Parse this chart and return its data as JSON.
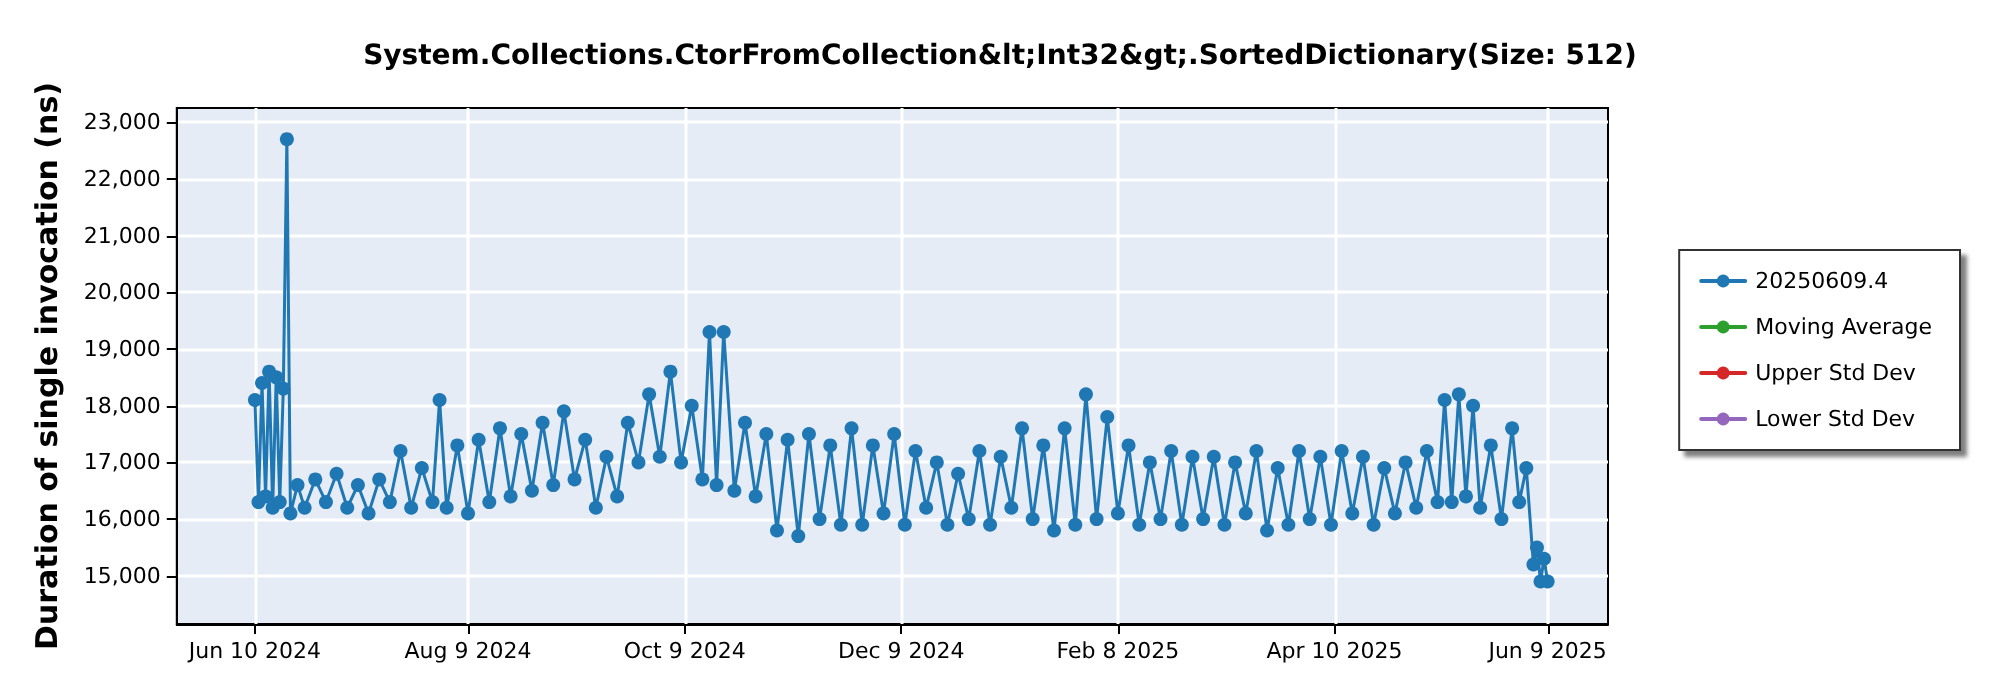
{
  "chart_data": {
    "type": "line",
    "title": "System.Collections.CtorFromCollection&lt;Int32&gt;.SortedDictionary(Size: 512)",
    "ylabel": "Duration of single invocation (ns)",
    "x": [
      "2024-06-10",
      "2024-06-11",
      "2024-06-12",
      "2024-06-13",
      "2024-06-14",
      "2024-06-15",
      "2024-06-16",
      "2024-06-17",
      "2024-06-18",
      "2024-06-19",
      "2024-06-20",
      "2024-06-22",
      "2024-06-24",
      "2024-06-27",
      "2024-06-30",
      "2024-07-03",
      "2024-07-06",
      "2024-07-09",
      "2024-07-12",
      "2024-07-15",
      "2024-07-18",
      "2024-07-21",
      "2024-07-24",
      "2024-07-27",
      "2024-07-30",
      "2024-08-01",
      "2024-08-03",
      "2024-08-06",
      "2024-08-09",
      "2024-08-12",
      "2024-08-15",
      "2024-08-18",
      "2024-08-21",
      "2024-08-24",
      "2024-08-27",
      "2024-08-30",
      "2024-09-02",
      "2024-09-05",
      "2024-09-08",
      "2024-09-11",
      "2024-09-14",
      "2024-09-17",
      "2024-09-20",
      "2024-09-23",
      "2024-09-26",
      "2024-09-29",
      "2024-10-02",
      "2024-10-05",
      "2024-10-08",
      "2024-10-11",
      "2024-10-14",
      "2024-10-16",
      "2024-10-18",
      "2024-10-20",
      "2024-10-23",
      "2024-10-26",
      "2024-10-29",
      "2024-11-01",
      "2024-11-04",
      "2024-11-07",
      "2024-11-10",
      "2024-11-13",
      "2024-11-16",
      "2024-11-19",
      "2024-11-22",
      "2024-11-25",
      "2024-11-28",
      "2024-12-01",
      "2024-12-04",
      "2024-12-07",
      "2024-12-10",
      "2024-12-13",
      "2024-12-16",
      "2024-12-19",
      "2024-12-22",
      "2024-12-25",
      "2024-12-28",
      "2024-12-31",
      "2025-01-03",
      "2025-01-06",
      "2025-01-09",
      "2025-01-12",
      "2025-01-15",
      "2025-01-18",
      "2025-01-21",
      "2025-01-24",
      "2025-01-27",
      "2025-01-30",
      "2025-02-02",
      "2025-02-05",
      "2025-02-08",
      "2025-02-11",
      "2025-02-14",
      "2025-02-17",
      "2025-02-20",
      "2025-02-23",
      "2025-02-26",
      "2025-03-01",
      "2025-03-04",
      "2025-03-07",
      "2025-03-10",
      "2025-03-13",
      "2025-03-16",
      "2025-03-19",
      "2025-03-22",
      "2025-03-25",
      "2025-03-28",
      "2025-03-31",
      "2025-04-03",
      "2025-04-06",
      "2025-04-09",
      "2025-04-12",
      "2025-04-15",
      "2025-04-18",
      "2025-04-21",
      "2025-04-24",
      "2025-04-27",
      "2025-04-30",
      "2025-05-03",
      "2025-05-06",
      "2025-05-09",
      "2025-05-11",
      "2025-05-13",
      "2025-05-15",
      "2025-05-17",
      "2025-05-19",
      "2025-05-21",
      "2025-05-24",
      "2025-05-27",
      "2025-05-30",
      "2025-06-01",
      "2025-06-03",
      "2025-06-05",
      "2025-06-06",
      "2025-06-07",
      "2025-06-08",
      "2025-06-09"
    ],
    "series": [
      {
        "name": "20250609.4",
        "color": "#1f77b4",
        "values": [
          18100,
          16300,
          18400,
          16400,
          18600,
          16200,
          18500,
          16300,
          18300,
          22700,
          16100,
          16600,
          16200,
          16700,
          16300,
          16800,
          16200,
          16600,
          16100,
          16700,
          16300,
          17200,
          16200,
          16900,
          16300,
          18100,
          16200,
          17300,
          16100,
          17400,
          16300,
          17600,
          16400,
          17500,
          16500,
          17700,
          16600,
          17900,
          16700,
          17400,
          16200,
          17100,
          16400,
          17700,
          17000,
          18200,
          17100,
          18600,
          17000,
          18000,
          16700,
          19300,
          16600,
          19300,
          16500,
          17700,
          16400,
          17500,
          15800,
          17400,
          15700,
          17500,
          16000,
          17300,
          15900,
          17600,
          15900,
          17300,
          16100,
          17500,
          15900,
          17200,
          16200,
          17000,
          15900,
          16800,
          16000,
          17200,
          15900,
          17100,
          16200,
          17600,
          16000,
          17300,
          15800,
          17600,
          15900,
          18200,
          16000,
          17800,
          16100,
          17300,
          15900,
          17000,
          16000,
          17200,
          15900,
          17100,
          16000,
          17100,
          15900,
          17000,
          16100,
          17200,
          15800,
          16900,
          15900,
          17200,
          16000,
          17100,
          15900,
          17200,
          16100,
          17100,
          15900,
          16900,
          16100,
          17000,
          16200,
          17200,
          16300,
          18100,
          16300,
          18200,
          16400,
          18000,
          16200,
          17300,
          16000,
          17600,
          16300,
          16900,
          15200,
          15500,
          14900,
          15300,
          14900
        ]
      },
      {
        "name": "Moving Average",
        "color": "#2ca02c",
        "values": [
          null,
          null,
          null,
          null,
          null,
          null,
          null,
          null,
          null,
          null,
          null,
          null,
          null,
          null,
          null,
          null,
          null,
          null,
          null,
          null,
          null,
          null,
          null,
          null,
          null,
          null,
          null,
          null,
          null,
          null,
          null,
          null,
          null,
          null,
          null,
          null,
          null,
          null,
          null,
          null,
          null,
          null,
          null,
          null,
          null,
          null,
          null,
          null,
          null,
          null,
          null,
          null,
          null,
          null,
          null,
          null,
          null,
          null,
          null,
          null,
          null,
          null,
          null,
          null,
          null,
          null,
          null,
          null,
          null,
          null,
          null,
          null,
          null,
          null,
          null,
          null,
          null,
          null,
          null,
          null,
          null,
          null,
          null,
          null,
          null,
          null,
          null,
          null,
          null,
          null,
          null,
          null,
          null,
          null,
          null,
          null,
          null,
          null,
          null,
          null,
          null,
          null,
          null,
          null,
          null,
          null,
          null,
          null,
          null,
          null,
          null,
          null,
          null,
          null,
          null,
          null,
          null,
          null,
          null,
          null,
          null,
          null,
          null,
          null,
          null,
          null,
          null,
          null,
          null,
          null,
          null,
          null,
          null,
          null,
          null,
          null,
          null
        ]
      },
      {
        "name": "Upper Std Dev",
        "color": "#d62728",
        "values": [
          null,
          null,
          null,
          null,
          null,
          null,
          null,
          null,
          null,
          null,
          null,
          null,
          null,
          null,
          null,
          null,
          null,
          null,
          null,
          null,
          null,
          null,
          null,
          null,
          null,
          null,
          null,
          null,
          null,
          null,
          null,
          null,
          null,
          null,
          null,
          null,
          null,
          null,
          null,
          null,
          null,
          null,
          null,
          null,
          null,
          null,
          null,
          null,
          null,
          null,
          null,
          null,
          null,
          null,
          null,
          null,
          null,
          null,
          null,
          null,
          null,
          null,
          null,
          null,
          null,
          null,
          null,
          null,
          null,
          null,
          null,
          null,
          null,
          null,
          null,
          null,
          null,
          null,
          null,
          null,
          null,
          null,
          null,
          null,
          null,
          null,
          null,
          null,
          null,
          null,
          null,
          null,
          null,
          null,
          null,
          null,
          null,
          null,
          null,
          null,
          null,
          null,
          null,
          null,
          null,
          null,
          null,
          null,
          null,
          null,
          null,
          null,
          null,
          null,
          null,
          null,
          null,
          null,
          null,
          null,
          null,
          null,
          null,
          null,
          null,
          null,
          null,
          null,
          null,
          null,
          null,
          null,
          null,
          null,
          null,
          null,
          null
        ]
      },
      {
        "name": "Lower Std Dev",
        "color": "#9467bd",
        "values": [
          null,
          null,
          null,
          null,
          null,
          null,
          null,
          null,
          null,
          null,
          null,
          null,
          null,
          null,
          null,
          null,
          null,
          null,
          null,
          null,
          null,
          null,
          null,
          null,
          null,
          null,
          null,
          null,
          null,
          null,
          null,
          null,
          null,
          null,
          null,
          null,
          null,
          null,
          null,
          null,
          null,
          null,
          null,
          null,
          null,
          null,
          null,
          null,
          null,
          null,
          null,
          null,
          null,
          null,
          null,
          null,
          null,
          null,
          null,
          null,
          null,
          null,
          null,
          null,
          null,
          null,
          null,
          null,
          null,
          null,
          null,
          null,
          null,
          null,
          null,
          null,
          null,
          null,
          null,
          null,
          null,
          null,
          null,
          null,
          null,
          null,
          null,
          null,
          null,
          null,
          null,
          null,
          null,
          null,
          null,
          null,
          null,
          null,
          null,
          null,
          null,
          null,
          null,
          null,
          null,
          null,
          null,
          null,
          null,
          null,
          null,
          null,
          null,
          null,
          null,
          null,
          null,
          null,
          null,
          null,
          null,
          null,
          null,
          null,
          null,
          null,
          null,
          null,
          null,
          null,
          null,
          null,
          null,
          null,
          null,
          null,
          null
        ]
      }
    ],
    "xlim": [
      "2024-05-19",
      "2025-06-26"
    ],
    "xticks": [
      {
        "value": "2024-06-10",
        "label": "Jun 10 2024"
      },
      {
        "value": "2024-08-09",
        "label": "Aug 9 2024"
      },
      {
        "value": "2024-10-09",
        "label": "Oct 9 2024"
      },
      {
        "value": "2024-12-09",
        "label": "Dec 9 2024"
      },
      {
        "value": "2025-02-08",
        "label": "Feb 8 2025"
      },
      {
        "value": "2025-04-10",
        "label": "Apr 10 2025"
      },
      {
        "value": "2025-06-09",
        "label": "Jun 9 2025"
      }
    ],
    "ylim": [
      14150,
      23250
    ],
    "yticks": [
      {
        "value": 15000,
        "label": "15,000"
      },
      {
        "value": 16000,
        "label": "16,000"
      },
      {
        "value": 17000,
        "label": "17,000"
      },
      {
        "value": 18000,
        "label": "18,000"
      },
      {
        "value": 19000,
        "label": "19,000"
      },
      {
        "value": 20000,
        "label": "20,000"
      },
      {
        "value": 21000,
        "label": "21,000"
      },
      {
        "value": 22000,
        "label": "22,000"
      },
      {
        "value": 23000,
        "label": "23,000"
      }
    ],
    "grid": true,
    "legend": "right",
    "marker": "circle",
    "line_style": "solid"
  }
}
